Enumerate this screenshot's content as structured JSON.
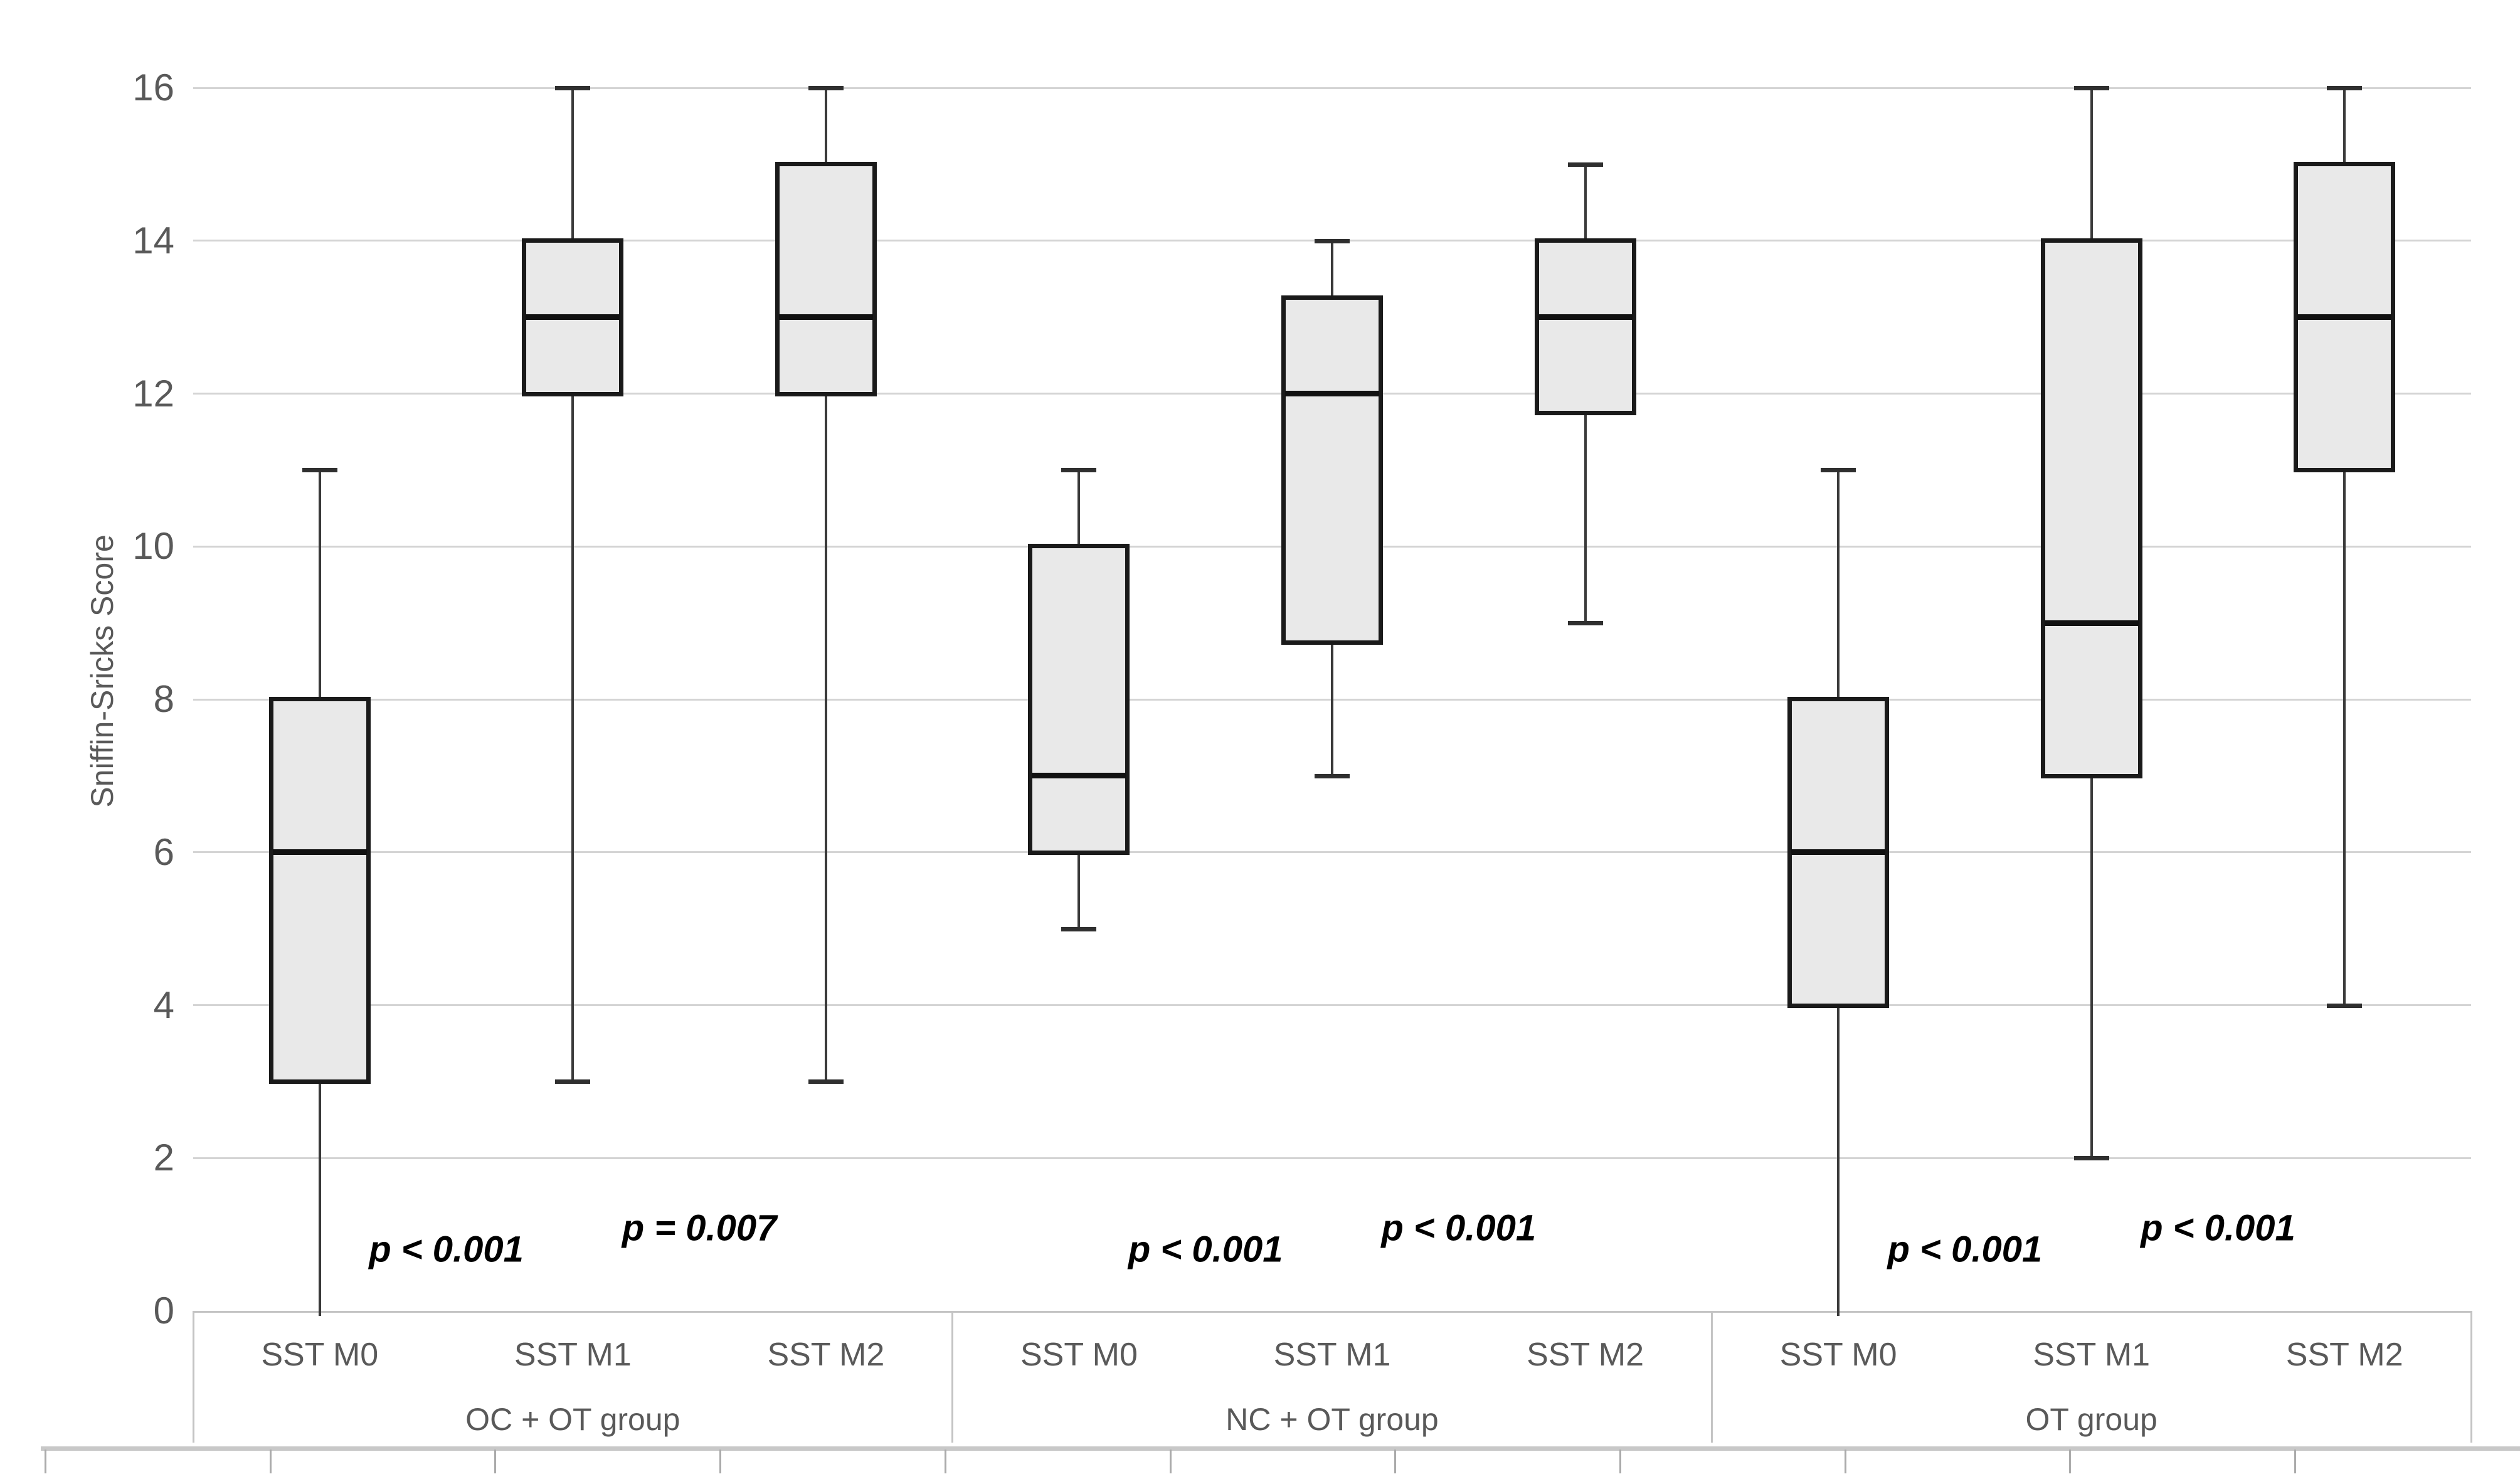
{
  "chart_data": {
    "type": "box",
    "title": "",
    "xlabel": "",
    "ylabel": "Sniffin-Sricks Score",
    "ylim": [
      0,
      16
    ],
    "ytick_step": 2,
    "yticks": [
      0,
      2,
      4,
      6,
      8,
      10,
      12,
      14,
      16
    ],
    "grid": true,
    "legend": false,
    "box_stats_order": [
      "whisker_low",
      "q1",
      "median",
      "q3",
      "whisker_high"
    ],
    "groups": [
      {
        "label": "OC + OT group",
        "boxes": [
          {
            "category": "SST M0",
            "whisker_low": 0,
            "q1": 3,
            "median": 6,
            "q3": 8,
            "whisker_high": 11
          },
          {
            "category": "SST M1",
            "whisker_low": 3,
            "q1": 12,
            "median": 13,
            "q3": 14,
            "whisker_high": 16
          },
          {
            "category": "SST M2",
            "whisker_low": 3,
            "q1": 12,
            "median": 13,
            "q3": 15,
            "whisker_high": 16
          }
        ],
        "p_annotations": [
          {
            "text": "p < 0.001",
            "between": [
              "SST M0",
              "SST M1"
            ]
          },
          {
            "text": "p = 0.007",
            "between": [
              "SST M1",
              "SST M2"
            ]
          }
        ]
      },
      {
        "label": "NC + OT group",
        "boxes": [
          {
            "category": "SST M0",
            "whisker_low": 5,
            "q1": 6,
            "median": 7,
            "q3": 10,
            "whisker_high": 11
          },
          {
            "category": "SST M1",
            "whisker_low": 7,
            "q1": 8.75,
            "median": 12,
            "q3": 13.25,
            "whisker_high": 14
          },
          {
            "category": "SST M2",
            "whisker_low": 9,
            "q1": 11.75,
            "median": 13,
            "q3": 14,
            "whisker_high": 15
          }
        ],
        "p_annotations": [
          {
            "text": "p < 0.001",
            "between": [
              "SST M0",
              "SST M1"
            ]
          },
          {
            "text": "p < 0.001",
            "between": [
              "SST M1",
              "SST M2"
            ]
          }
        ]
      },
      {
        "label": "OT group",
        "boxes": [
          {
            "category": "SST M0",
            "whisker_low": 0,
            "q1": 4,
            "median": 6,
            "q3": 8,
            "whisker_high": 11
          },
          {
            "category": "SST M1",
            "whisker_low": 2,
            "q1": 7,
            "median": 9,
            "q3": 14,
            "whisker_high": 16
          },
          {
            "category": "SST M2",
            "whisker_low": 4,
            "q1": 11,
            "median": 13,
            "q3": 15,
            "whisker_high": 16
          }
        ],
        "p_annotations": [
          {
            "text": "p < 0.001",
            "between": [
              "SST M0",
              "SST M1"
            ]
          },
          {
            "text": "p < 0.001",
            "between": [
              "SST M1",
              "SST M2"
            ]
          }
        ]
      }
    ],
    "colors": {
      "box_fill": "#e9e9e9",
      "box_border": "#1a1a1a",
      "median": "#111111",
      "whisker": "#3a3a3a",
      "gridline": "#d4d4d4",
      "axis_text": "#595959",
      "table_border": "#c4c4c4",
      "p_text": "#000000",
      "background": "#ffffff"
    }
  }
}
